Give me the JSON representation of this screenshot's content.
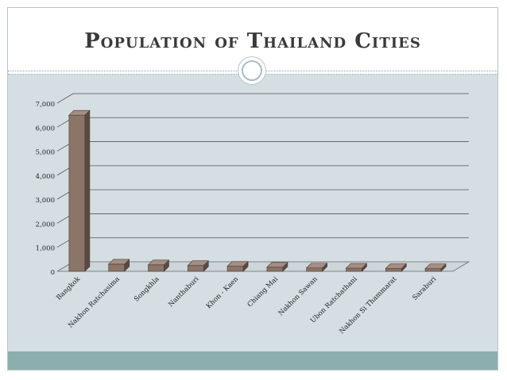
{
  "slide": {
    "title": "Population of Thailand Cities"
  },
  "chart_data": {
    "type": "bar",
    "title": "",
    "xlabel": "",
    "ylabel": "",
    "categories": [
      "Bangkok",
      "Nakhon Ratchasima",
      "Songkhla",
      "Nanthaburi",
      "Khon - Kaen",
      "Chiang Mai",
      "Nakhon Sawan",
      "Ubon Ratchathani",
      "Nakhon Si Thammarat",
      "Saraburi"
    ],
    "values": [
      6500,
      300,
      270,
      240,
      210,
      170,
      140,
      130,
      120,
      110
    ],
    "yticks": [
      "0",
      "1,000",
      "2,000",
      "3,000",
      "4,000",
      "5,000",
      "6,000",
      "7,000"
    ],
    "ylim": [
      0,
      7000
    ],
    "grid": true,
    "legend": "none",
    "colors": {
      "bar_front": "#8b7468",
      "bar_side": "#5b4a43",
      "bar_top": "#a58e83",
      "gridline": "#555555"
    }
  }
}
